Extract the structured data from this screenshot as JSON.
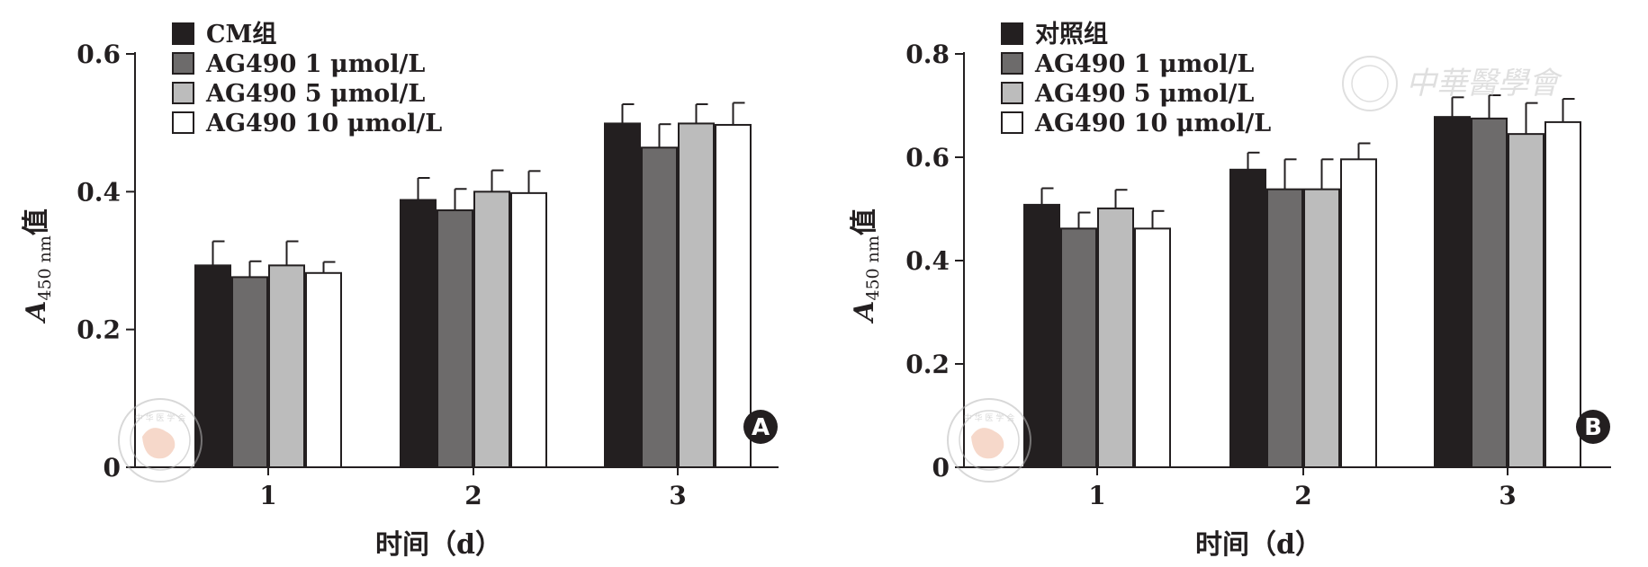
{
  "colors": {
    "series": [
      "#231f20",
      "#6d6b6b",
      "#bcbcbc",
      "#ffffff"
    ],
    "axis": "#231f20",
    "badge": "#231f20",
    "badge_text": "#ffffff",
    "watermark": "#b9b9b9",
    "watermark_map": "#f0b9a0"
  },
  "watermark": {
    "seal_text": "中 华 医 学 会",
    "seal_ring_text": "CHINESE MEDICAL ASSOCIATION",
    "brand_text": "中華醫學會"
  },
  "chart_data": [
    {
      "type": "bar",
      "panel_label": "A",
      "xlabel": "时间（d）",
      "ylabel_main": "A",
      "ylabel_sub": "450 nm",
      "ylabel_tail": "值",
      "categories": [
        "1",
        "2",
        "3"
      ],
      "ylim": [
        0,
        0.6
      ],
      "yticks": [
        0,
        0.2,
        0.4,
        0.6
      ],
      "ytick_labels": [
        "0",
        "0.2",
        "0.4",
        "0.6"
      ],
      "legend_position": "top-left",
      "grid": false,
      "series": [
        {
          "name": "CM组",
          "values": [
            0.293,
            0.388,
            0.499
          ],
          "errors": [
            0.035,
            0.032,
            0.028
          ]
        },
        {
          "name": "AG490 1 μmol/L",
          "values": [
            0.276,
            0.373,
            0.464
          ],
          "errors": [
            0.023,
            0.031,
            0.034
          ]
        },
        {
          "name": "AG490 5 μmol/L",
          "values": [
            0.293,
            0.4,
            0.499
          ],
          "errors": [
            0.035,
            0.031,
            0.028
          ]
        },
        {
          "name": "AG490 10 μmol/L",
          "values": [
            0.282,
            0.398,
            0.497
          ],
          "errors": [
            0.016,
            0.032,
            0.032
          ]
        }
      ]
    },
    {
      "type": "bar",
      "panel_label": "B",
      "xlabel": "时间（d）",
      "ylabel_main": "A",
      "ylabel_sub": "450 nm",
      "ylabel_tail": "值",
      "categories": [
        "1",
        "2",
        "3"
      ],
      "ylim": [
        0,
        0.8
      ],
      "yticks": [
        0,
        0.2,
        0.4,
        0.6,
        0.8
      ],
      "ytick_labels": [
        "0",
        "0.2",
        "0.4",
        "0.6",
        "0.8"
      ],
      "legend_position": "top-left",
      "grid": false,
      "series": [
        {
          "name": "对照组",
          "values": [
            0.508,
            0.576,
            0.678
          ],
          "errors": [
            0.032,
            0.033,
            0.038
          ]
        },
        {
          "name": "AG490 1 μmol/L",
          "values": [
            0.462,
            0.538,
            0.675
          ],
          "errors": [
            0.031,
            0.058,
            0.045
          ]
        },
        {
          "name": "AG490 5 μmol/L",
          "values": [
            0.501,
            0.538,
            0.645
          ],
          "errors": [
            0.036,
            0.058,
            0.06
          ]
        },
        {
          "name": "AG490 10 μmol/L",
          "values": [
            0.462,
            0.596,
            0.668
          ],
          "errors": [
            0.034,
            0.031,
            0.045
          ]
        }
      ]
    }
  ]
}
